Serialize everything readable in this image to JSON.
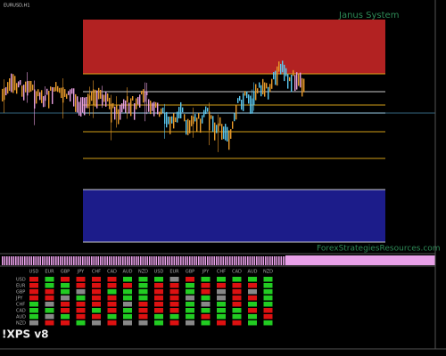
{
  "window": {
    "symbol": "EURUSD,H1",
    "watermark": "Janus System",
    "site": "ForexStrategiesResources.com"
  },
  "indicator": {
    "name": "!XPS v8",
    "columns": [
      "USD",
      "EUR",
      "GBP",
      "JPY",
      "CHF",
      "CAD",
      "AUD",
      "NZD",
      "USD",
      "EUR",
      "GBP",
      "JPY",
      "CHF",
      "CAD",
      "AUD",
      "NZD"
    ],
    "rows": [
      "USD",
      "EUR",
      "GBP",
      "JPY",
      "CHF",
      "CAD",
      "AUD",
      "NZD"
    ]
  }
}
